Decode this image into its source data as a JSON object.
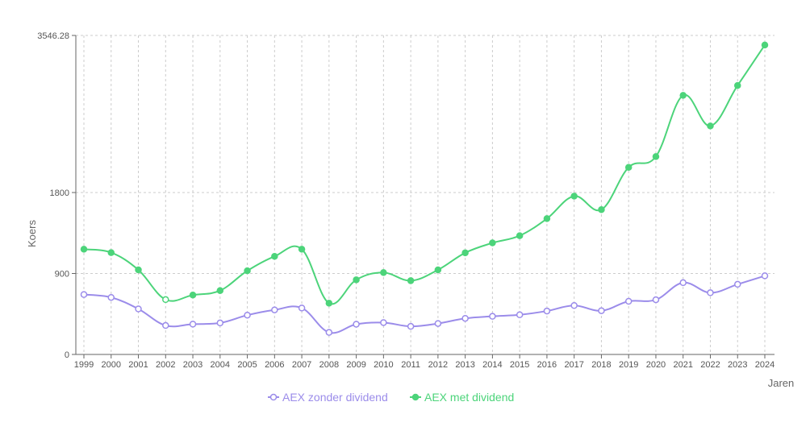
{
  "chart_data": {
    "type": "line",
    "xlabel": "Jaren",
    "ylabel": "Koers",
    "ylim": [
      0,
      3546.28
    ],
    "yticks": [
      0,
      900,
      1800,
      3546.28
    ],
    "ytick_labels": [
      "0",
      "900",
      "1800",
      "3546.28"
    ],
    "grid": true,
    "legend": "bottom-center",
    "x": [
      "1999",
      "2000",
      "2001",
      "2002",
      "2003",
      "2004",
      "2005",
      "2006",
      "2007",
      "2008",
      "2009",
      "2010",
      "2011",
      "2012",
      "2013",
      "2014",
      "2015",
      "2016",
      "2017",
      "2018",
      "2019",
      "2020",
      "2021",
      "2022",
      "2023",
      "2024"
    ],
    "series": [
      {
        "name": "AEX zonder dividend",
        "color": "#9b8cea",
        "marker": "open-circle",
        "values": [
          666,
          634,
          506,
          322,
          337,
          350,
          437,
          495,
          516,
          245,
          336,
          354,
          312,
          344,
          401,
          424,
          441,
          483,
          544,
          486,
          591,
          608,
          798,
          686,
          780,
          874
        ]
      },
      {
        "name": "AEX met dividend",
        "color": "#4cd47a",
        "marker": "filled-circle",
        "values": [
          1170,
          1132,
          940,
          610,
          660,
          710,
          930,
          1090,
          1170,
          570,
          830,
          910,
          820,
          940,
          1130,
          1240,
          1320,
          1510,
          1760,
          1610,
          2080,
          2200,
          2880,
          2540,
          2990,
          3440
        ]
      }
    ]
  }
}
